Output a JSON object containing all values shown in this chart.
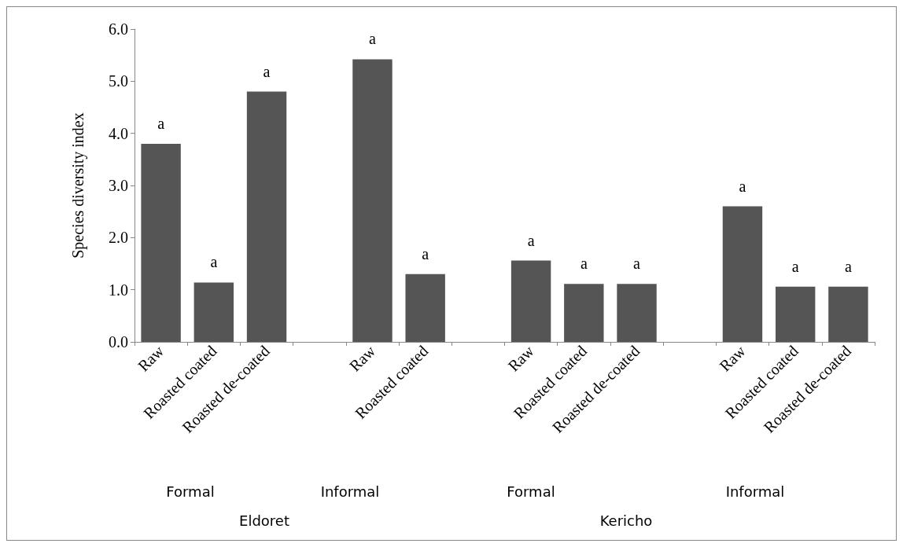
{
  "chart_data": {
    "type": "bar",
    "ylabel": "Species diversity index",
    "categories": [
      "Raw",
      "Roasted coated",
      "Roasted de-coated",
      null,
      "Raw",
      "Roasted coated",
      null,
      "Raw",
      "Roasted coated",
      "Roasted de-coated",
      null,
      "Raw",
      "Roasted coated",
      "Roasted de-coated"
    ],
    "values": [
      3.8,
      1.14,
      4.8,
      null,
      5.42,
      1.3,
      null,
      1.56,
      1.11,
      1.11,
      null,
      2.6,
      1.06,
      1.06
    ],
    "value_labels": [
      "a",
      "a",
      "a",
      null,
      "a",
      "a",
      null,
      "a",
      "a",
      "a",
      null,
      "a",
      "a",
      "a"
    ],
    "color": "#555555",
    "ylim": [
      0,
      6
    ],
    "yticks": [
      {
        "value": 0,
        "label": "0.0"
      },
      {
        "value": 1,
        "label": "1.0"
      },
      {
        "value": 2,
        "label": "2.0"
      },
      {
        "value": 3,
        "label": "3.0"
      },
      {
        "value": 4,
        "label": "4.0"
      },
      {
        "value": 5,
        "label": "5.0"
      },
      {
        "value": 6,
        "label": "6.0"
      }
    ],
    "grid": false,
    "annotations": [
      "Formal",
      "Informal",
      "Formal",
      "Informal",
      "Eldoret",
      "Kericho"
    ]
  }
}
